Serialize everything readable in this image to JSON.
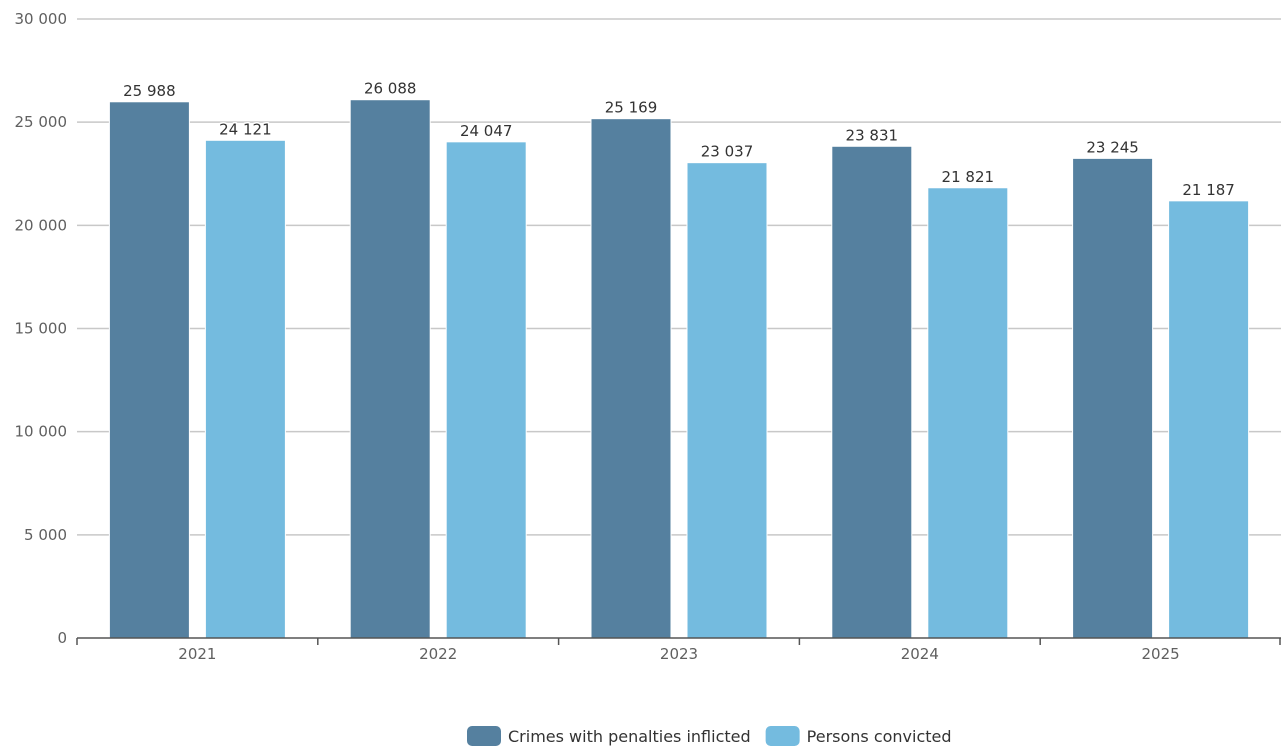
{
  "chart_data": {
    "type": "bar",
    "categories": [
      "2021",
      "2022",
      "2023",
      "2024",
      "2025"
    ],
    "series": [
      {
        "name": "Crimes with penalties inflicted",
        "values": [
          25988,
          26088,
          25169,
          23831,
          23245
        ],
        "color": "#55809f"
      },
      {
        "name": "Persons convicted",
        "values": [
          24121,
          24047,
          23037,
          21821,
          21187
        ],
        "color": "#74bbdf"
      }
    ],
    "ylim": [
      0,
      30000
    ],
    "yticks": [
      0,
      5000,
      10000,
      15000,
      20000,
      25000,
      30000
    ],
    "ytick_labels": [
      "0",
      "5 000",
      "10 000",
      "15 000",
      "20 000",
      "25 000",
      "30 000"
    ],
    "data_labels": [
      [
        "25 988",
        "26 088",
        "25 169",
        "23 831",
        "23 245"
      ],
      [
        "24 121",
        "24 047",
        "23 037",
        "21 821",
        "21 187"
      ]
    ],
    "grid": true,
    "legend_position": "bottom-center",
    "gridline_color": "#c8c8c8",
    "axis_color": "#555555"
  }
}
